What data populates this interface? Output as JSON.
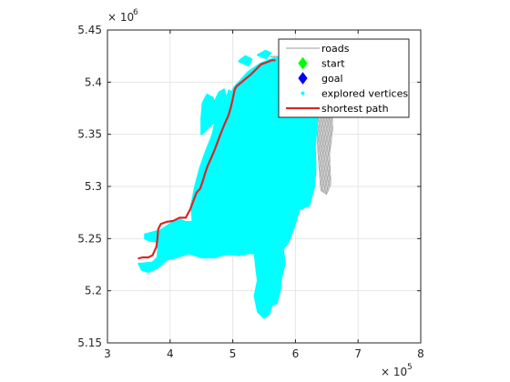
{
  "chart_data": {
    "type": "line",
    "title": "",
    "xlabel": "",
    "ylabel": "",
    "xlim": [
      300000,
      800000
    ],
    "ylim": [
      5150000,
      5450000
    ],
    "x_ticks": [
      300000,
      400000,
      500000,
      600000,
      700000,
      800000
    ],
    "y_ticks": [
      5150000,
      5200000,
      5250000,
      5300000,
      5350000,
      5400000,
      5450000
    ],
    "x_tick_labels": [
      "3",
      "4",
      "5",
      "6",
      "7",
      "8"
    ],
    "y_tick_labels": [
      "5.15",
      "5.2",
      "5.25",
      "5.3",
      "5.35",
      "5.4",
      "5.45"
    ],
    "x_exponent": {
      "base": "× 10",
      "power": "5"
    },
    "y_exponent": {
      "base": "× 10",
      "power": "6"
    },
    "grid": true,
    "legend_position": "top-right",
    "colors": {
      "roads": "#9e9e9e",
      "start": "#00ff00",
      "goal": "#0000ff",
      "explored": "#00ffff",
      "path": "#d62728"
    },
    "series": [
      {
        "name": "roads",
        "style": "thin gray road network lines",
        "regions": [
          [
            [
              555000,
              5425000
            ],
            [
              625000,
              5426000
            ],
            [
              640000,
              5420000
            ],
            [
              650000,
              5402000
            ],
            [
              658000,
              5385000
            ],
            [
              660000,
              5355000
            ],
            [
              655000,
              5330000
            ],
            [
              657000,
              5302000
            ],
            [
              650000,
              5292000
            ],
            [
              640000,
              5296000
            ],
            [
              635000,
              5335000
            ],
            [
              633000,
              5378000
            ],
            [
              625000,
              5405000
            ],
            [
              600000,
              5418000
            ]
          ]
        ]
      },
      {
        "name": "explored vertices",
        "style": "dense cyan point cloud",
        "regions": [
          [
            [
              355000,
              5226000
            ],
            [
              372000,
              5227000
            ],
            [
              380000,
              5232000
            ],
            [
              382000,
              5247000
            ],
            [
              398000,
              5240000
            ],
            [
              412000,
              5244000
            ],
            [
              432000,
              5252000
            ],
            [
              438000,
              5260000
            ],
            [
              444000,
              5274000
            ],
            [
              447000,
              5290000
            ],
            [
              452000,
              5305000
            ],
            [
              462000,
              5320000
            ],
            [
              472000,
              5336000
            ],
            [
              480000,
              5352000
            ],
            [
              487000,
              5372000
            ],
            [
              490000,
              5384000
            ],
            [
              494000,
              5392000
            ],
            [
              499000,
              5390000
            ],
            [
              502000,
              5395000
            ],
            [
              510000,
              5400000
            ],
            [
              525000,
              5410000
            ],
            [
              545000,
              5418000
            ],
            [
              562000,
              5422000
            ],
            [
              575000,
              5424000
            ],
            [
              590000,
              5420000
            ],
            [
              603000,
              5415000
            ],
            [
              615000,
              5412000
            ],
            [
              626000,
              5404000
            ],
            [
              634000,
              5392000
            ],
            [
              636000,
              5378000
            ],
            [
              634000,
              5360000
            ],
            [
              631000,
              5338000
            ],
            [
              632000,
              5318000
            ],
            [
              630000,
              5300000
            ],
            [
              622000,
              5282000
            ],
            [
              606000,
              5278000
            ],
            [
              597000,
              5260000
            ],
            [
              588000,
              5246000
            ],
            [
              580000,
              5240000
            ],
            [
              583000,
              5226000
            ],
            [
              577000,
              5212000
            ],
            [
              575000,
              5200000
            ],
            [
              570000,
              5188000
            ],
            [
              562000,
              5186000
            ],
            [
              558000,
              5178000
            ],
            [
              550000,
              5174000
            ],
            [
              540000,
              5180000
            ],
            [
              535000,
              5195000
            ],
            [
              540000,
              5210000
            ],
            [
              537000,
              5224000
            ],
            [
              535000,
              5236000
            ],
            [
              525000,
              5236000
            ],
            [
              510000,
              5234000
            ],
            [
              500000,
              5235000
            ],
            [
              488000,
              5235000
            ],
            [
              472000,
              5232000
            ],
            [
              450000,
              5232000
            ],
            [
              430000,
              5236000
            ],
            [
              410000,
              5232000
            ],
            [
              395000,
              5230000
            ],
            [
              380000,
              5222000
            ],
            [
              365000,
              5218000
            ],
            [
              355000,
              5220000
            ],
            [
              350000,
              5226000
            ]
          ],
          [
            [
              360000,
              5254000
            ],
            [
              372000,
              5256000
            ],
            [
              385000,
              5258000
            ],
            [
              395000,
              5262000
            ],
            [
              405000,
              5266000
            ],
            [
              416000,
              5268000
            ],
            [
              425000,
              5266000
            ],
            [
              436000,
              5266000
            ],
            [
              434000,
              5282000
            ],
            [
              440000,
              5300000
            ],
            [
              448000,
              5318000
            ],
            [
              458000,
              5335000
            ],
            [
              468000,
              5350000
            ],
            [
              472000,
              5362000
            ],
            [
              470000,
              5380000
            ],
            [
              478000,
              5390000
            ],
            [
              486000,
              5393000
            ],
            [
              490000,
              5384000
            ],
            [
              487000,
              5372000
            ],
            [
              480000,
              5352000
            ],
            [
              472000,
              5336000
            ],
            [
              462000,
              5320000
            ],
            [
              452000,
              5305000
            ],
            [
              447000,
              5290000
            ],
            [
              444000,
              5274000
            ],
            [
              438000,
              5260000
            ],
            [
              432000,
              5252000
            ],
            [
              412000,
              5244000
            ],
            [
              398000,
              5240000
            ],
            [
              382000,
              5247000
            ],
            [
              368000,
              5248000
            ],
            [
              360000,
              5250000
            ]
          ],
          [
            [
              450000,
              5350000
            ],
            [
              460000,
              5356000
            ],
            [
              470000,
              5362000
            ],
            [
              472000,
              5375000
            ],
            [
              468000,
              5385000
            ],
            [
              459000,
              5388000
            ],
            [
              452000,
              5380000
            ],
            [
              450000,
              5365000
            ]
          ],
          [
            [
              510000,
              5420000
            ],
            [
              520000,
              5425000
            ],
            [
              530000,
              5422000
            ],
            [
              525000,
              5416000
            ]
          ],
          [
            [
              540000,
              5426000
            ],
            [
              552000,
              5430000
            ],
            [
              560000,
              5428000
            ],
            [
              553000,
              5423000
            ]
          ]
        ]
      },
      {
        "name": "shortest path",
        "style": "solid red line",
        "x": [
          350000,
          356000,
          365000,
          372000,
          375000,
          378000,
          380000,
          381000,
          385000,
          394000,
          405000,
          415000,
          425000,
          432000,
          437000,
          442000,
          448000,
          452000,
          456000,
          460000,
          466000,
          471000,
          476000,
          481000,
          487000,
          493000,
          497000,
          500000,
          503000,
          506000,
          512000,
          520000,
          528000,
          535000,
          545000,
          554000,
          562000,
          567000
        ],
        "y": [
          5231000,
          5232000,
          5232000,
          5234000,
          5238000,
          5242000,
          5251000,
          5259000,
          5264000,
          5266000,
          5267000,
          5270000,
          5270000,
          5278000,
          5286000,
          5294000,
          5298000,
          5305000,
          5313000,
          5320000,
          5328000,
          5335000,
          5343000,
          5351000,
          5360000,
          5368000,
          5376000,
          5384000,
          5393000,
          5396000,
          5399000,
          5403000,
          5407000,
          5411000,
          5417000,
          5419000,
          5421000,
          5421000
        ]
      },
      {
        "name": "start",
        "style": "green diamond marker",
        "x": [],
        "y": []
      },
      {
        "name": "goal",
        "style": "blue diamond marker",
        "x": [],
        "y": []
      }
    ],
    "legend_entries": [
      "roads",
      "start",
      "goal",
      "explored vertices",
      "shortest path"
    ]
  }
}
